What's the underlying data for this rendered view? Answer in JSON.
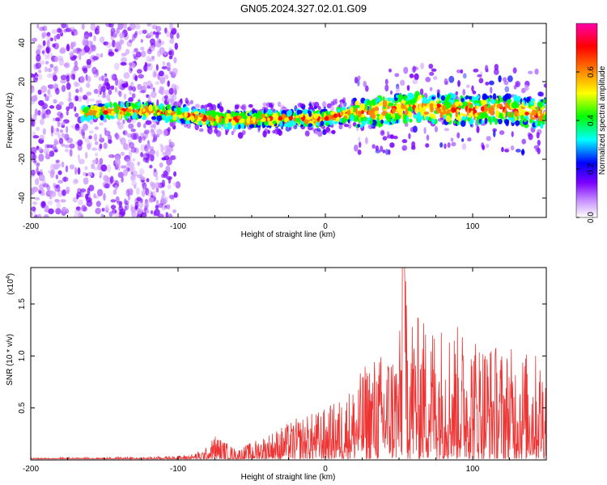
{
  "title": "GN05.2024.327.02.01.G09",
  "chart_data": [
    {
      "type": "heatmap",
      "xlabel": "Height of straight line (km)",
      "ylabel": "Frequency (Hz)",
      "xlim": [
        -200,
        150
      ],
      "ylim": [
        -50,
        50
      ],
      "xticks": [
        -200,
        -100,
        0,
        100
      ],
      "yticks": [
        -40,
        -20,
        0,
        20,
        40
      ],
      "colorbar": {
        "label": "Normalized spectral amplitude",
        "range": [
          0,
          0.8
        ],
        "ticks": [
          "0.0",
          "0.2",
          "0.4",
          "0.6"
        ],
        "colors": [
          "#ffffff",
          "#cc99ff",
          "#7a00ff",
          "#0000ff",
          "#00ffff",
          "#00ff00",
          "#ffff00",
          "#ff7f00",
          "#ff0000",
          "#ff00aa"
        ]
      },
      "ridge": {
        "x": [
          -165,
          -140,
          -120,
          -100,
          -80,
          -60,
          -40,
          -20,
          0,
          20,
          40,
          60,
          80,
          100,
          120,
          140,
          150
        ],
        "y": [
          4,
          5,
          5,
          3,
          1,
          0,
          1,
          1,
          1,
          4,
          5,
          7,
          6,
          5,
          6,
          4,
          4
        ]
      },
      "noise_region_x": [
        -200,
        -100
      ]
    },
    {
      "type": "line",
      "xlabel": "Height of straight line (km)",
      "ylabel": "SNR (10 * v/v)",
      "yscale_label": "(x10",
      "yscale_exp": "4",
      "xlim": [
        -200,
        150
      ],
      "ylim": [
        0,
        1.85
      ],
      "xticks": [
        -200,
        -100,
        0,
        100
      ],
      "yticks": [
        "0.5",
        "1.0",
        "1.5"
      ],
      "ytick_values": [
        0.5,
        1.0,
        1.5
      ],
      "color": "#ee3333",
      "envelope": {
        "x": [
          -200,
          -120,
          -100,
          -90,
          -80,
          -75,
          -60,
          -40,
          -20,
          0,
          10,
          20,
          30,
          40,
          50,
          55,
          60,
          80,
          100,
          120,
          140,
          150
        ],
        "y": [
          0.02,
          0.03,
          0.04,
          0.06,
          0.12,
          0.25,
          0.1,
          0.25,
          0.4,
          0.5,
          0.6,
          0.75,
          1.0,
          1.05,
          1.2,
          1.85,
          1.4,
          1.35,
          1.25,
          1.1,
          1.05,
          1.0
        ]
      },
      "peak": {
        "x": 53,
        "y": 1.85
      }
    }
  ]
}
